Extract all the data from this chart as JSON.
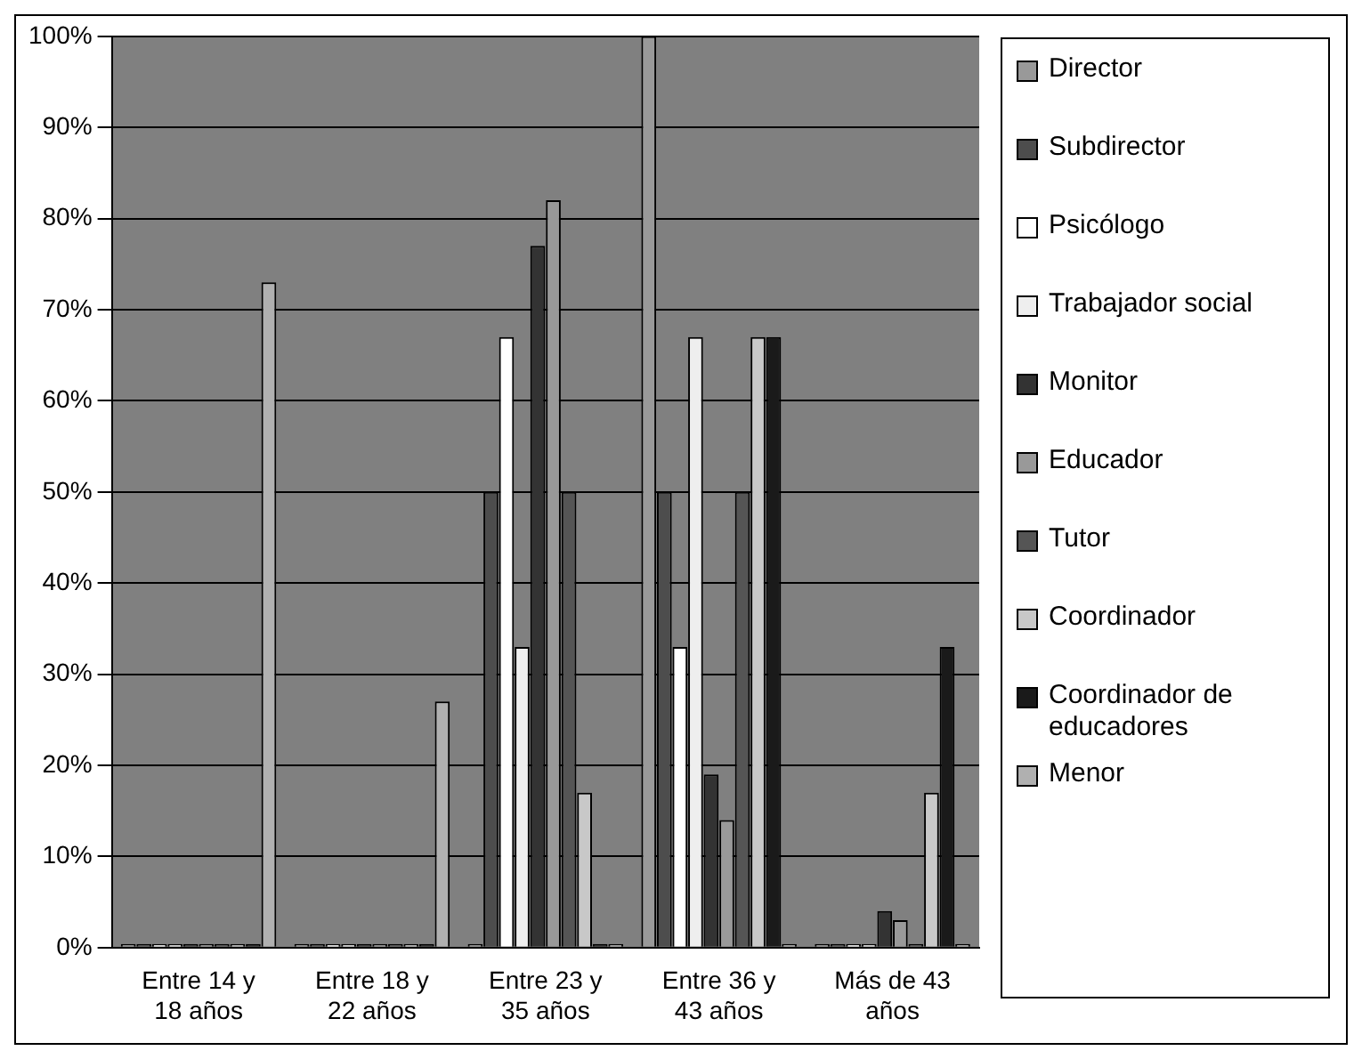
{
  "chart_data": {
    "type": "bar",
    "categories": [
      "Entre 14 y 18 años",
      "Entre 18 y 22 años",
      "Entre 23 y 35 años",
      "Entre 36 y 43 años",
      "Más de 43 años"
    ],
    "series": [
      {
        "name": "Director",
        "color": "#999999",
        "values": [
          0,
          0,
          0,
          100,
          0
        ]
      },
      {
        "name": "Subdirector",
        "color": "#4d4d4d",
        "values": [
          0,
          0,
          50,
          50,
          0
        ]
      },
      {
        "name": "Psicólogo",
        "color": "#ffffff",
        "values": [
          0,
          0,
          67,
          33,
          0
        ]
      },
      {
        "name": "Trabajador social",
        "color": "#eeeeee",
        "values": [
          0,
          0,
          33,
          67,
          0
        ]
      },
      {
        "name": "Monitor",
        "color": "#333333",
        "values": [
          0,
          0,
          77,
          19,
          4
        ]
      },
      {
        "name": "Educador",
        "color": "#999999",
        "values": [
          0,
          0,
          82,
          14,
          3
        ]
      },
      {
        "name": "Tutor",
        "color": "#555555",
        "values": [
          0,
          0,
          50,
          50,
          0
        ]
      },
      {
        "name": "Coordinador",
        "color": "#c8c8c8",
        "values": [
          0,
          0,
          17,
          67,
          17
        ]
      },
      {
        "name": "Coordinador de educadores",
        "color": "#1a1a1a",
        "values": [
          0,
          0,
          0,
          67,
          33
        ]
      },
      {
        "name": "Menor",
        "color": "#b0b0b0",
        "values": [
          73,
          27,
          0,
          0,
          0
        ]
      }
    ],
    "ylim": [
      0,
      100
    ],
    "yticks": [
      {
        "value": 0,
        "label": "0%"
      },
      {
        "value": 10,
        "label": "10%"
      },
      {
        "value": 20,
        "label": "20%"
      },
      {
        "value": 30,
        "label": "30%"
      },
      {
        "value": 40,
        "label": "40%"
      },
      {
        "value": 50,
        "label": "50%"
      },
      {
        "value": 60,
        "label": "60%"
      },
      {
        "value": 70,
        "label": "70%"
      },
      {
        "value": 80,
        "label": "80%"
      },
      {
        "value": 90,
        "label": "90%"
      },
      {
        "value": 100,
        "label": "100%"
      }
    ],
    "grid": "y",
    "legend": "right"
  }
}
